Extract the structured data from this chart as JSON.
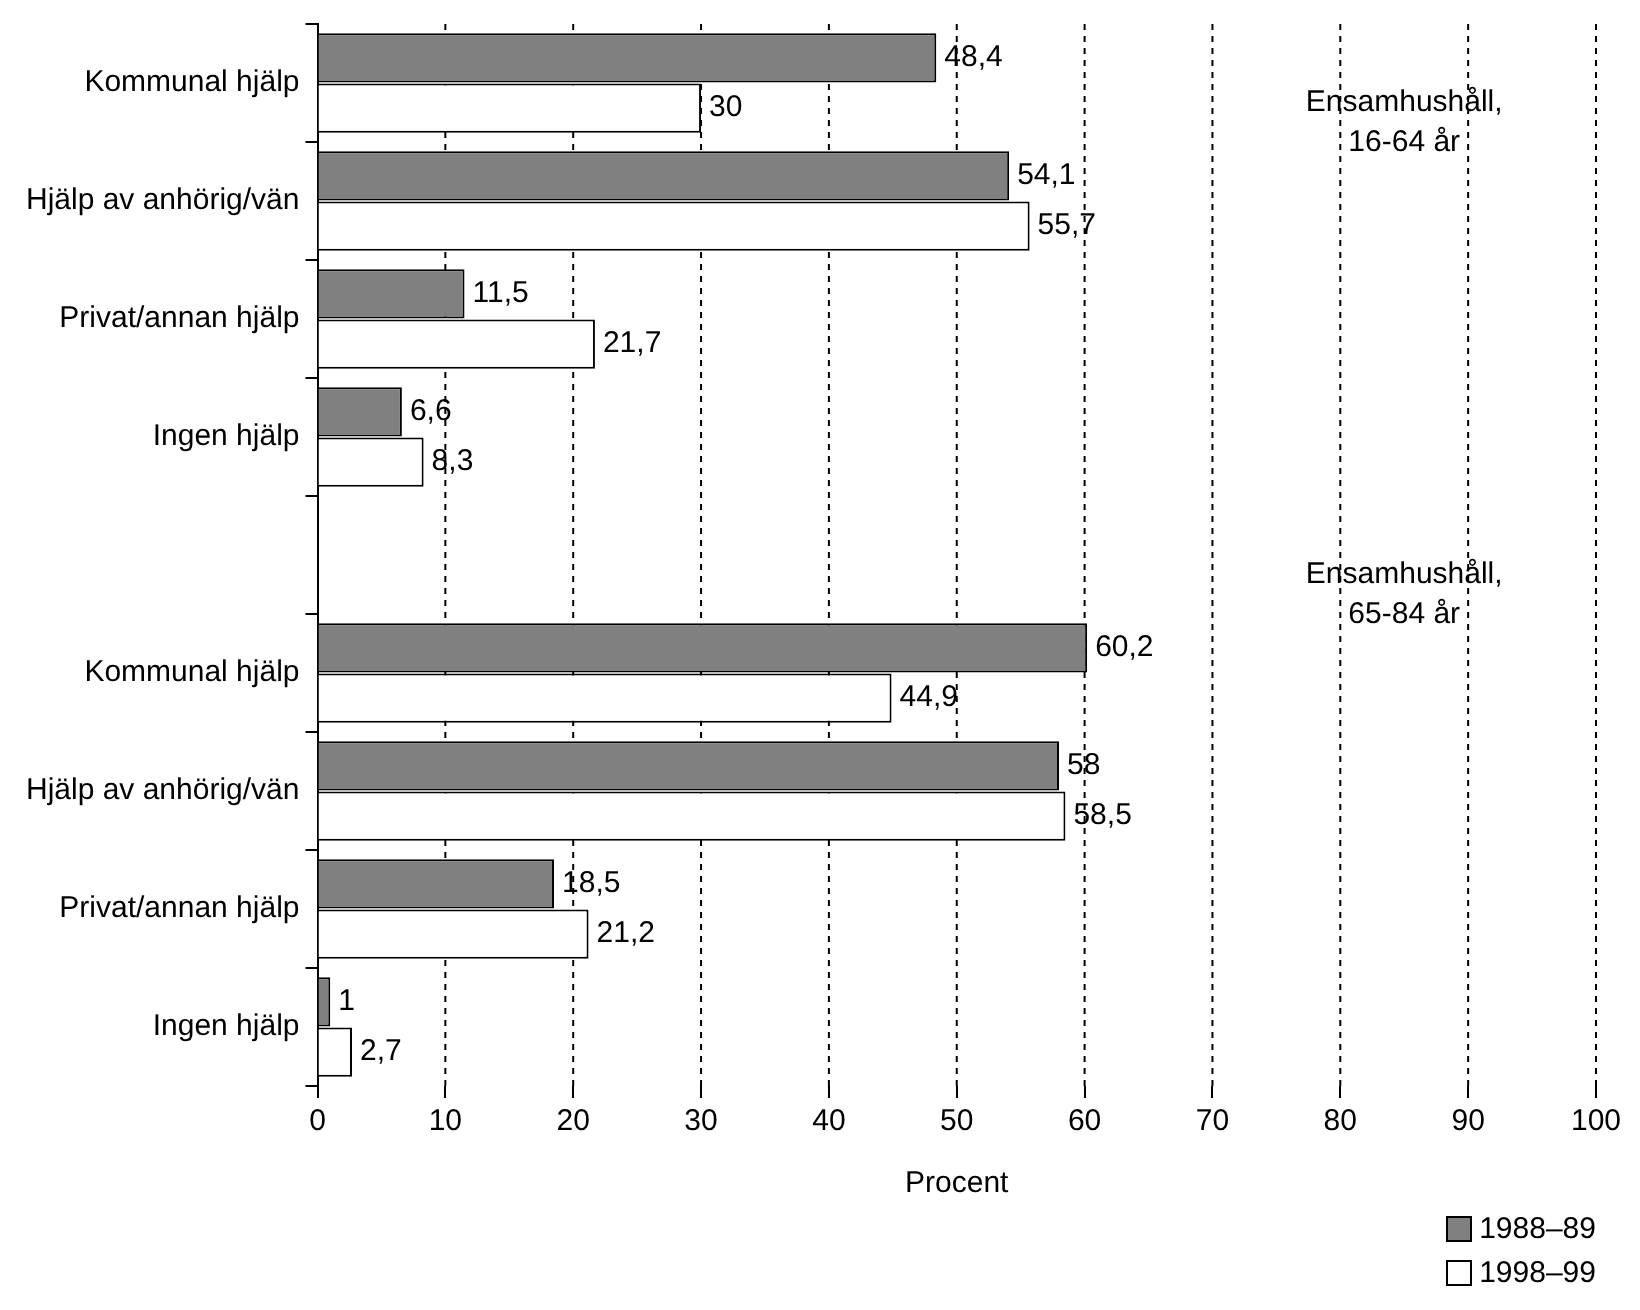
{
  "chart_data": {
    "type": "bar",
    "orientation": "horizontal",
    "xlabel": "Procent",
    "categories": [
      "Kommunal hjälp",
      "Hjälp av anhörig/vän",
      "Privat/annan hjälp",
      "Ingen hjälp",
      null,
      "Kommunal hjälp",
      "Hjälp av anhörig/vän",
      "Privat/annan hjälp",
      "Ingen hjälp"
    ],
    "series": [
      {
        "name": "1988–89",
        "color": "#808080",
        "values": [
          48.4,
          54.1,
          11.5,
          6.6,
          null,
          60.2,
          58,
          18.5,
          1
        ],
        "value_labels": [
          "48,4",
          "54,1",
          "11,5",
          "6,6",
          null,
          "60,2",
          "58",
          "18,5",
          "1"
        ]
      },
      {
        "name": "1998–99",
        "color": "#ffffff",
        "values": [
          30,
          55.7,
          21.7,
          8.3,
          null,
          44.9,
          58.5,
          21.2,
          2.7
        ],
        "value_labels": [
          "30",
          "55,7",
          "21,7",
          "8,3",
          null,
          "44,9",
          "58,5",
          "21,2",
          "2,7"
        ]
      }
    ],
    "xlim": [
      0,
      100
    ],
    "xticks": [
      0,
      10,
      20,
      30,
      40,
      50,
      60,
      70,
      80,
      90,
      100
    ],
    "grid": "x",
    "legend": "bottom right",
    "annotations": [
      "Ensamhushåll, 16-64 år",
      "Ensamhushåll, 65-84 år"
    ]
  }
}
